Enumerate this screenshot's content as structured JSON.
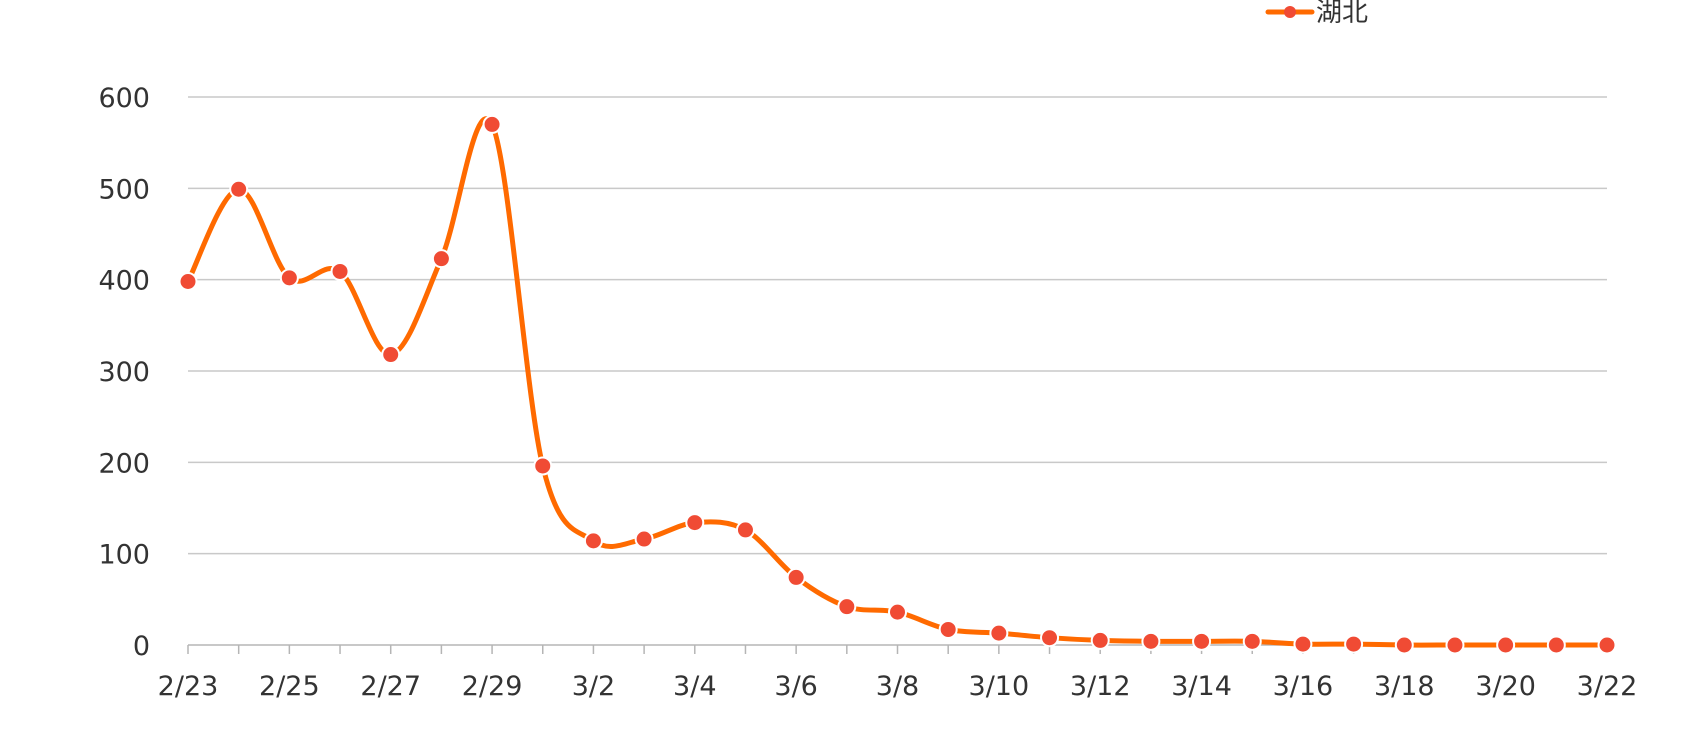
{
  "chart_data": {
    "type": "line",
    "x": [
      "2/23",
      "2/24",
      "2/25",
      "2/26",
      "2/27",
      "2/28",
      "2/29",
      "3/1",
      "3/2",
      "3/3",
      "3/4",
      "3/5",
      "3/6",
      "3/7",
      "3/8",
      "3/9",
      "3/10",
      "3/11",
      "3/12",
      "3/13",
      "3/14",
      "3/15",
      "3/16",
      "3/17",
      "3/18",
      "3/19",
      "3/20",
      "3/21",
      "3/22"
    ],
    "x_tick_labels": [
      "2/23",
      "2/25",
      "2/27",
      "2/29",
      "3/2",
      "3/4",
      "3/6",
      "3/8",
      "3/10",
      "3/12",
      "3/14",
      "3/16",
      "3/18",
      "3/20",
      "3/22"
    ],
    "series": [
      {
        "name": "湖北",
        "color": "#ff6a00",
        "marker_color": "#f04b34",
        "values": [
          398,
          499,
          402,
          409,
          318,
          423,
          570,
          196,
          114,
          116,
          134,
          126,
          74,
          42,
          36,
          17,
          13,
          8,
          5,
          4,
          4,
          4,
          1,
          1,
          0,
          0,
          0,
          0,
          0
        ]
      }
    ],
    "ylim": [
      0,
      600
    ],
    "yticks": [
      0,
      100,
      200,
      300,
      400,
      500,
      600
    ],
    "grid": true,
    "legend_position": "top-right",
    "smooth": true
  }
}
